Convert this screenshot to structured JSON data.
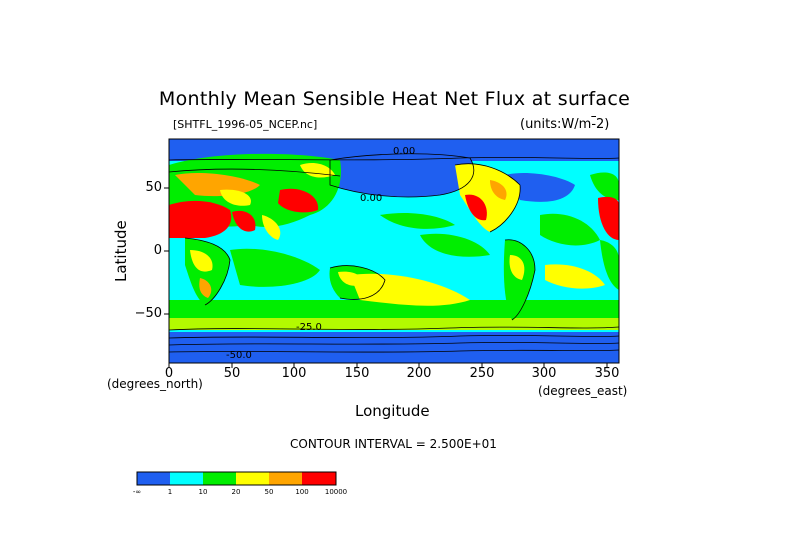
{
  "title": "Monthly Mean Sensible Heat Net Flux at surface",
  "file_label": "[SHTFL_1996-05_NCEP.nc]",
  "units_label": "(units:W/m^-2)",
  "axes": {
    "xlabel": "Longitude",
    "ylabel": "Latitude",
    "x_units": "(degrees_east)",
    "y_units": "(degrees_north)",
    "x_ticks": [
      "0",
      "50",
      "100",
      "150",
      "200",
      "250",
      "300",
      "350"
    ],
    "y_ticks": [
      "50",
      "0",
      "−50"
    ]
  },
  "contour_interval": "CONTOUR INTERVAL = 2.500E+01",
  "colorbar": {
    "colors": [
      "#1f5ff0",
      "#00ffff",
      "#00ee00",
      "#ffff00",
      "#ffa500",
      "#ff0000"
    ],
    "labels": [
      "-∞",
      "1",
      "10",
      "20",
      "50",
      "100",
      "10000"
    ]
  },
  "contour_labels": [
    "0.00",
    "0.00",
    "-25.0",
    "-50.0"
  ]
}
